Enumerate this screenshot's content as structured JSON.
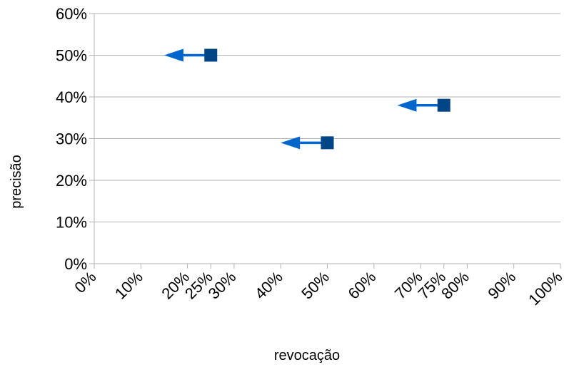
{
  "chart_data": {
    "type": "scatter",
    "title": "",
    "xlabel": "revocação",
    "ylabel": "precisão",
    "xlim": [
      0,
      100
    ],
    "ylim": [
      0,
      60
    ],
    "x_ticks": [
      {
        "value": 0,
        "label": "0%"
      },
      {
        "value": 10,
        "label": "10%"
      },
      {
        "value": 20,
        "label": "20%"
      },
      {
        "value": 25,
        "label": "25%"
      },
      {
        "value": 30,
        "label": "30%"
      },
      {
        "value": 40,
        "label": "40%"
      },
      {
        "value": 50,
        "label": "50%"
      },
      {
        "value": 60,
        "label": "60%"
      },
      {
        "value": 70,
        "label": "70%"
      },
      {
        "value": 75,
        "label": "75%"
      },
      {
        "value": 80,
        "label": "80%"
      },
      {
        "value": 90,
        "label": "90%"
      },
      {
        "value": 100,
        "label": "100%"
      }
    ],
    "y_ticks": [
      {
        "value": 0,
        "label": "0%"
      },
      {
        "value": 10,
        "label": "10%"
      },
      {
        "value": 20,
        "label": "20%"
      },
      {
        "value": 30,
        "label": "30%"
      },
      {
        "value": 40,
        "label": "40%"
      },
      {
        "value": 50,
        "label": "50%"
      },
      {
        "value": 60,
        "label": "60%"
      }
    ],
    "grid": {
      "horizontal": true,
      "vertical": false
    },
    "points": [
      {
        "x": 25,
        "y": 50
      },
      {
        "x": 50,
        "y": 29
      },
      {
        "x": 75,
        "y": 38
      }
    ],
    "arrows": [
      {
        "from": [
          25,
          50
        ],
        "to": [
          15,
          50
        ]
      },
      {
        "from": [
          50,
          29
        ],
        "to": [
          40,
          29
        ]
      },
      {
        "from": [
          75,
          38
        ],
        "to": [
          65,
          38
        ]
      }
    ],
    "colors": {
      "marker": "#004586",
      "arrow": "#0066cc",
      "grid": "#b3b3b3",
      "axis": "#b3b3b3"
    }
  }
}
